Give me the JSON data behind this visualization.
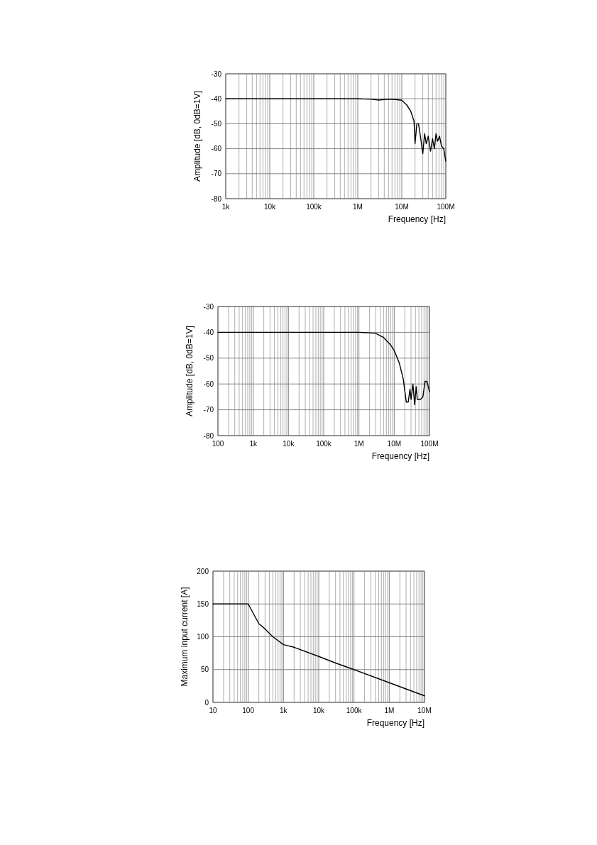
{
  "chart_data": [
    {
      "type": "line",
      "xlabel": "Frequency [Hz]",
      "ylabel": "Amplitude [dB, 0dB=1V]",
      "log": "x",
      "grid": true,
      "xlim": [
        1000,
        100000000
      ],
      "ylim": [
        -80,
        -30
      ],
      "xticks": [
        {
          "value": 1000,
          "label": "1k"
        },
        {
          "value": 10000,
          "label": "10k"
        },
        {
          "value": 100000,
          "label": "100k"
        },
        {
          "value": 1000000,
          "label": "1M"
        },
        {
          "value": 10000000,
          "label": "10M"
        },
        {
          "value": 100000000,
          "label": "100M"
        }
      ],
      "yticks": [
        -80,
        -70,
        -60,
        -50,
        -40,
        -30
      ],
      "series": [
        {
          "color": "#000000",
          "x": [
            1000,
            10000,
            100000,
            1000000,
            2000000,
            3000000,
            5000000,
            7000000,
            10000000,
            13000000,
            16000000,
            19000000,
            20000000,
            22000000,
            24000000,
            27000000,
            30000000,
            33000000,
            36000000,
            40000000,
            45000000,
            50000000,
            55000000,
            60000000,
            65000000,
            72000000,
            80000000,
            90000000,
            100000000
          ],
          "values": [
            -40,
            -40,
            -40,
            -40,
            -40.2,
            -40.5,
            -40.2,
            -40.3,
            -40.6,
            -42.5,
            -45,
            -49,
            -58,
            -50,
            -50,
            -56,
            -62,
            -54,
            -58,
            -55,
            -61,
            -56,
            -60,
            -54,
            -57,
            -55,
            -59,
            -60,
            -65
          ]
        }
      ]
    },
    {
      "type": "line",
      "xlabel": "Frequency [Hz]",
      "ylabel": "Amplitude [dB, 0dB=1V]",
      "log": "x",
      "grid": true,
      "xlim": [
        100,
        100000000
      ],
      "ylim": [
        -80,
        -30
      ],
      "xticks": [
        {
          "value": 100,
          "label": "100"
        },
        {
          "value": 1000,
          "label": "1k"
        },
        {
          "value": 10000,
          "label": "10k"
        },
        {
          "value": 100000,
          "label": "100k"
        },
        {
          "value": 1000000,
          "label": "1M"
        },
        {
          "value": 10000000,
          "label": "10M"
        },
        {
          "value": 100000000,
          "label": "100M"
        }
      ],
      "yticks": [
        -80,
        -70,
        -60,
        -50,
        -40,
        -30
      ],
      "series": [
        {
          "color": "#000000",
          "x": [
            100,
            1000,
            10000,
            100000,
            1000000,
            2000000,
            3000000,
            5000000,
            8000000,
            10000000,
            14000000,
            18000000,
            22000000,
            25000000,
            28000000,
            30000000,
            34000000,
            38000000,
            42000000,
            45000000,
            55000000,
            65000000,
            75000000,
            85000000,
            100000000
          ],
          "values": [
            -40,
            -40,
            -40,
            -40,
            -40,
            -40.2,
            -40.4,
            -42,
            -45,
            -47,
            -52,
            -58,
            -67,
            -67,
            -62,
            -66,
            -60,
            -68,
            -61,
            -66,
            -66,
            -65,
            -59,
            -59,
            -63
          ]
        }
      ]
    },
    {
      "type": "line",
      "xlabel": "Frequency [Hz]",
      "ylabel": "Maximum input current [A]",
      "log": "x",
      "grid": true,
      "xlim": [
        10,
        10000000
      ],
      "ylim": [
        0,
        200
      ],
      "xticks": [
        {
          "value": 10,
          "label": "10"
        },
        {
          "value": 100,
          "label": "100"
        },
        {
          "value": 1000,
          "label": "1k"
        },
        {
          "value": 10000,
          "label": "10k"
        },
        {
          "value": 100000,
          "label": "100k"
        },
        {
          "value": 1000000,
          "label": "1M"
        },
        {
          "value": 10000000,
          "label": "10M"
        }
      ],
      "yticks": [
        0,
        50,
        100,
        150,
        200
      ],
      "series": [
        {
          "color": "#000000",
          "x": [
            10,
            100,
            200,
            300,
            500,
            1000,
            2000,
            10000,
            30000,
            100000,
            1000000,
            10000000
          ],
          "values": [
            150,
            150,
            120,
            112,
            100,
            88,
            84,
            70,
            60,
            50,
            30,
            10
          ]
        }
      ]
    }
  ]
}
